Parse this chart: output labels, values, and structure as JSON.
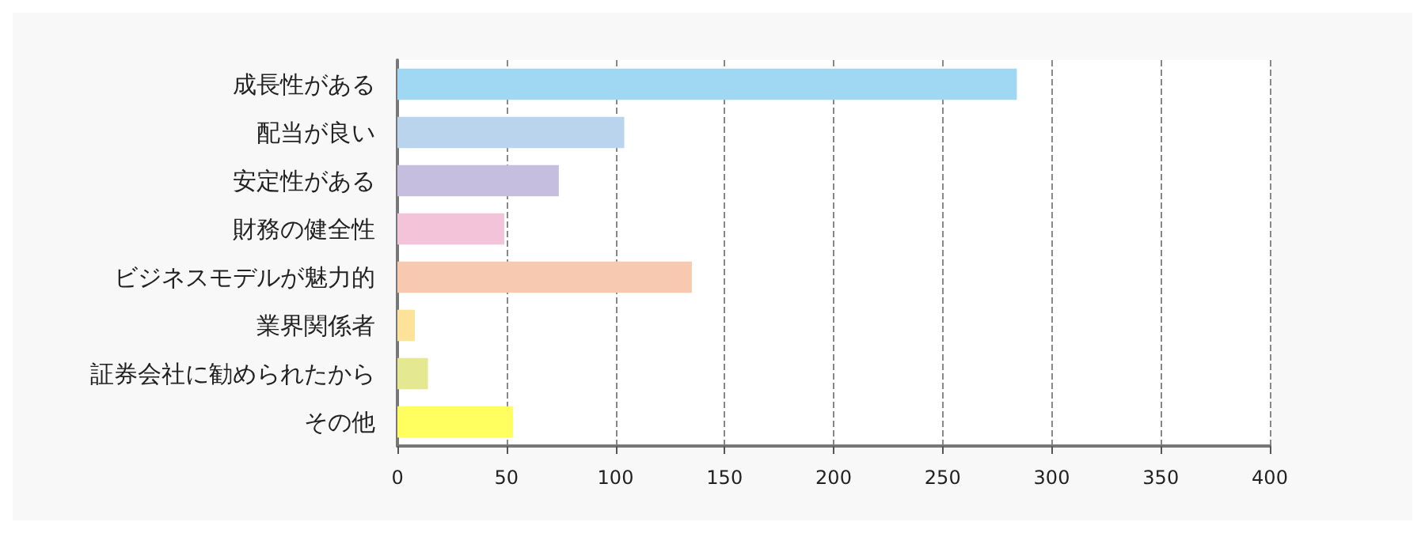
{
  "chart_data": {
    "type": "bar",
    "orientation": "horizontal",
    "categories": [
      "成長性がある",
      "配当が良い",
      "安定性がある",
      "財務の健全性",
      "ビジネスモデルが魅力的",
      "業界関係者",
      "証券会社に勧められたから",
      "その他"
    ],
    "values": [
      284,
      104,
      74,
      49,
      135,
      8,
      14,
      53
    ],
    "colors": [
      "#a0d8f4",
      "#bbd4ee",
      "#c5bedf",
      "#f3c3da",
      "#f7c9b0",
      "#fde29a",
      "#e4e890",
      "#ffff60"
    ],
    "xlim": [
      0,
      400
    ],
    "xticks": [
      0,
      50,
      100,
      150,
      200,
      250,
      300,
      350,
      400
    ],
    "grid": "x"
  }
}
